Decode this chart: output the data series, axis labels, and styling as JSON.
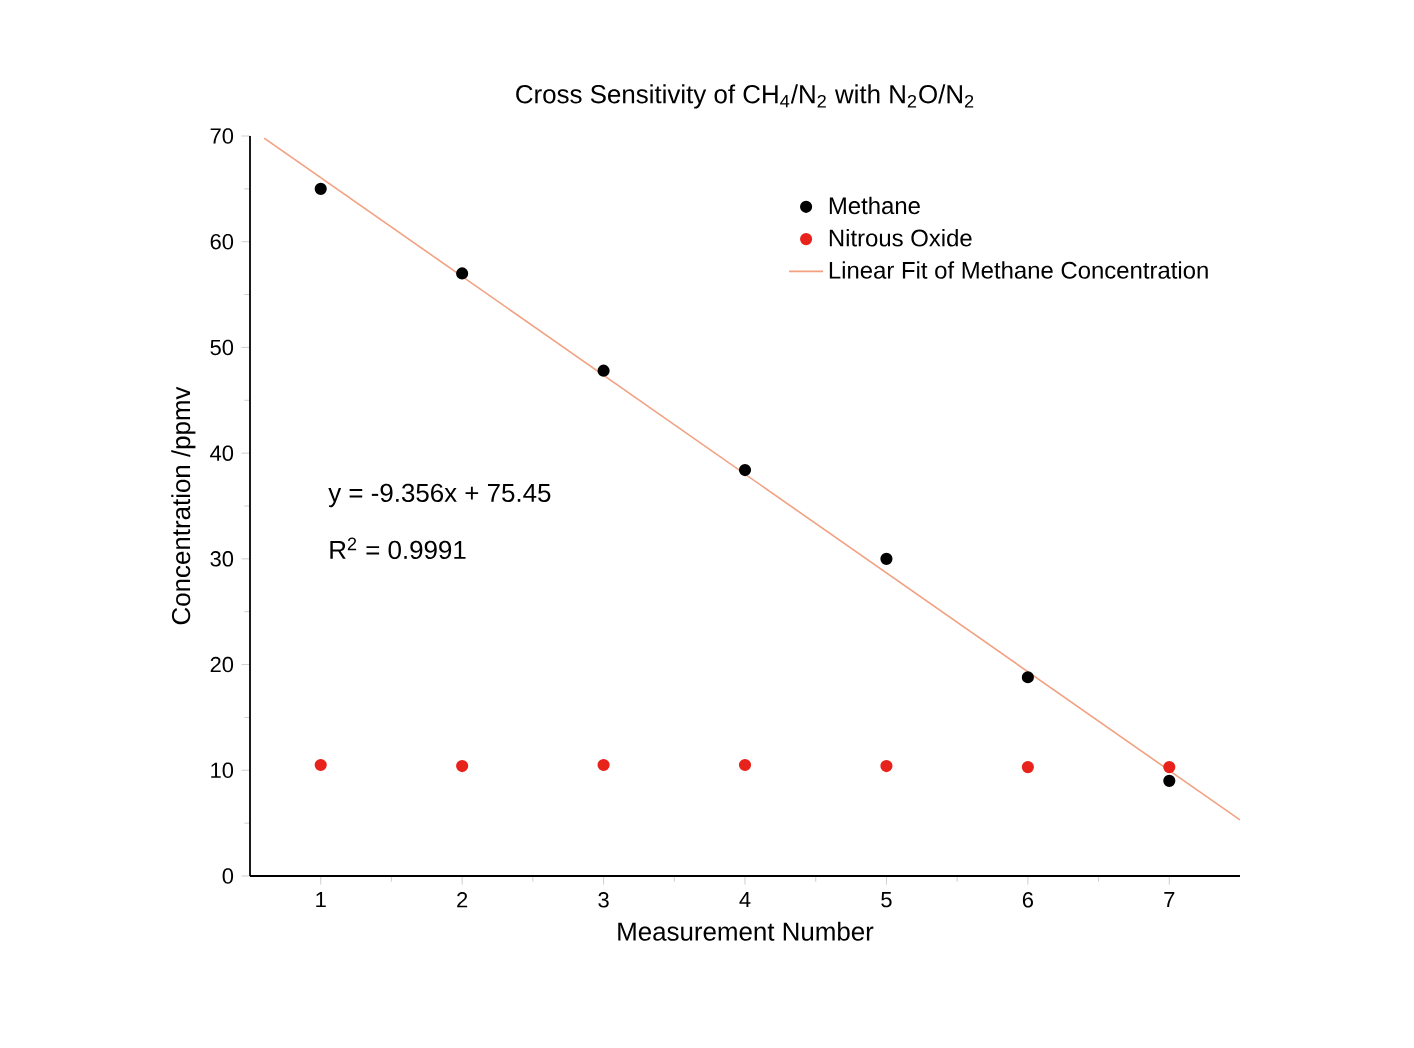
{
  "chart_data": {
    "type": "scatter",
    "title": "Cross Sensitivity of CH$_{4}$/N$_{2}$ with N$_{2}$O/N$_{2}$",
    "xlabel": "Measurement Number",
    "ylabel": "Concentration /ppmv",
    "x": [
      1,
      2,
      3,
      4,
      5,
      6,
      7
    ],
    "series": [
      {
        "name": "Methane",
        "color": "#000000",
        "values": [
          65,
          57,
          47.8,
          38.4,
          30,
          18.8,
          9
        ]
      },
      {
        "name": "Nitrous Oxide",
        "color": "#e8231c",
        "values": [
          10.5,
          10.4,
          10.5,
          10.5,
          10.4,
          10.3,
          10.3
        ]
      },
      {
        "name": "Linear Fit of Methane Concentration",
        "type": "line",
        "color": "#f2a080",
        "line_style": "solid",
        "marker": "none",
        "x": [
          0.6,
          7.5
        ],
        "values": [
          69.8,
          5.3
        ]
      }
    ],
    "xlim": [
      0.5,
      7.5
    ],
    "ylim": [
      0,
      70
    ],
    "xticks": [
      1,
      2,
      3,
      4,
      5,
      6,
      7
    ],
    "yticks": [
      0,
      10,
      20,
      30,
      40,
      50,
      60,
      70
    ],
    "annotations": [
      "y = -9.356x + 75.45",
      "R$^{2}$ = 0.9991"
    ],
    "marker": "circle",
    "legend": "top right",
    "grid": false
  }
}
